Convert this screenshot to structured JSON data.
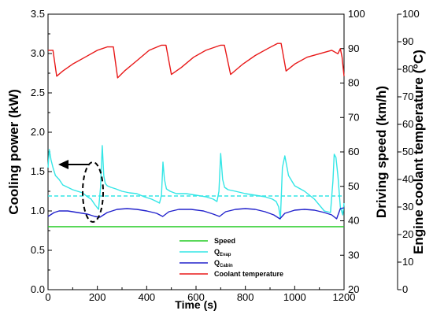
{
  "chart_data": {
    "type": "line",
    "xlabel": "Time (s)",
    "xlim": [
      0,
      1200
    ],
    "x_ticks": [
      "0",
      "200",
      "400",
      "600",
      "800",
      "1000",
      "1200"
    ],
    "y_axes": [
      {
        "label": "Cooling power (kW)",
        "range": [
          0,
          3.5
        ],
        "ticks": [
          "0.0",
          "0.5",
          "1.0",
          "1.5",
          "2.0",
          "2.5",
          "3.0",
          "3.5"
        ],
        "position": "left"
      },
      {
        "label": "Driving speed (km/h)",
        "range": [
          20,
          100
        ],
        "ticks": [
          "20",
          "30",
          "40",
          "50",
          "60",
          "70",
          "80",
          "90",
          "100"
        ],
        "position": "inner-right"
      },
      {
        "label": "Engine coolant temperature (°C)",
        "range": [
          0,
          100
        ],
        "ticks": [
          "0",
          "10",
          "20",
          "30",
          "40",
          "50",
          "60",
          "70",
          "80",
          "90",
          "100"
        ],
        "position": "outer-right"
      }
    ],
    "legend": {
      "placement": "bottom-center",
      "entries": [
        {
          "label": "Speed",
          "color": "#22cc22"
        },
        {
          "label": "Q",
          "sub": "Evap",
          "color": "#33e6e6"
        },
        {
          "label": "Q",
          "sub": "Cabin",
          "color": "#2222cc"
        },
        {
          "label": "Coolant temperature",
          "color": "#e81818"
        }
      ]
    },
    "annotation": {
      "type": "ellipse-with-left-arrow",
      "meaning": "Q_Evap and Q_Cabin read on left axis"
    },
    "series": [
      {
        "name": "Speed",
        "axis": "left",
        "color": "#22cc22",
        "style": "solid",
        "x": [
          0,
          1200
        ],
        "y": [
          0.8,
          0.8
        ]
      },
      {
        "name": "Q_Evap mean",
        "axis": "left",
        "color": "#33e6e6",
        "style": "dashed",
        "x": [
          0,
          1200
        ],
        "y": [
          1.19,
          1.19
        ]
      },
      {
        "name": "Q_Evap",
        "axis": "left",
        "color": "#33e6e6",
        "style": "solid",
        "x": [
          0,
          5,
          12,
          20,
          30,
          45,
          60,
          80,
          100,
          120,
          140,
          160,
          175,
          190,
          205,
          213,
          220,
          226,
          232,
          240,
          255,
          275,
          300,
          330,
          360,
          390,
          420,
          440,
          452,
          460,
          466,
          472,
          480,
          495,
          520,
          560,
          600,
          640,
          670,
          685,
          693,
          700,
          708,
          716,
          730,
          760,
          800,
          840,
          880,
          910,
          925,
          935,
          942,
          950,
          960,
          975,
          1000,
          1040,
          1080,
          1120,
          1145,
          1155,
          1160,
          1167,
          1175,
          1185,
          1195,
          1200
        ],
        "y": [
          1.55,
          1.78,
          1.65,
          1.55,
          1.45,
          1.4,
          1.33,
          1.3,
          1.27,
          1.25,
          1.23,
          1.18,
          1.15,
          1.08,
          1.02,
          1.3,
          1.83,
          1.45,
          1.35,
          1.32,
          1.3,
          1.28,
          1.25,
          1.23,
          1.22,
          1.18,
          1.15,
          1.12,
          1.1,
          1.2,
          1.62,
          1.4,
          1.28,
          1.25,
          1.22,
          1.22,
          1.2,
          1.18,
          1.15,
          1.12,
          1.25,
          1.73,
          1.4,
          1.3,
          1.27,
          1.25,
          1.22,
          1.2,
          1.18,
          1.15,
          1.12,
          1.05,
          0.9,
          1.55,
          1.7,
          1.45,
          1.32,
          1.25,
          1.15,
          1.0,
          0.98,
          1.38,
          1.72,
          1.68,
          1.45,
          1.05,
          0.95,
          1.1
        ]
      },
      {
        "name": "Q_Cabin",
        "axis": "left",
        "color": "#2222cc",
        "style": "solid",
        "x": [
          0,
          10,
          25,
          45,
          80,
          120,
          160,
          190,
          210,
          240,
          280,
          320,
          360,
          400,
          440,
          465,
          490,
          530,
          580,
          630,
          670,
          695,
          720,
          760,
          800,
          840,
          880,
          915,
          940,
          960,
          1000,
          1040,
          1080,
          1120,
          1150,
          1170,
          1185,
          1200
        ],
        "y": [
          0.93,
          0.95,
          0.98,
          1.0,
          1.0,
          0.98,
          0.96,
          0.93,
          0.92,
          0.98,
          1.02,
          1.03,
          1.02,
          1.0,
          0.97,
          0.93,
          0.99,
          1.02,
          1.02,
          1.0,
          0.96,
          0.93,
          0.99,
          1.02,
          1.03,
          1.02,
          0.99,
          0.95,
          0.9,
          0.97,
          1.01,
          1.02,
          1.01,
          0.98,
          0.95,
          0.9,
          1.03,
          1.04
        ]
      },
      {
        "name": "Coolant temperature",
        "axis": "right-inner",
        "color": "#e81818",
        "style": "solid",
        "x": [
          0,
          20,
          35,
          60,
          100,
          150,
          200,
          240,
          265,
          282,
          310,
          360,
          410,
          460,
          478,
          500,
          540,
          590,
          640,
          700,
          715,
          740,
          790,
          840,
          890,
          930,
          945,
          965,
          1000,
          1050,
          1100,
          1150,
          1175,
          1185,
          1192,
          1200
        ],
        "y": [
          89.5,
          89.5,
          82.0,
          83.5,
          85.5,
          87.5,
          89.5,
          90.5,
          90.5,
          81.5,
          83.5,
          86.5,
          89.5,
          91.0,
          91.0,
          82.5,
          84.5,
          87.5,
          89.5,
          91.0,
          91.0,
          82.5,
          85.5,
          88.0,
          90.0,
          91.5,
          91.5,
          83.5,
          85.5,
          87.5,
          88.5,
          89.5,
          88.5,
          90.0,
          87.5,
          82.0
        ]
      }
    ]
  }
}
